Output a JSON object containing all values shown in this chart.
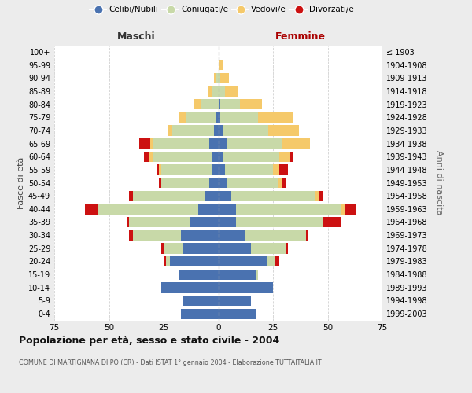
{
  "age_groups": [
    "0-4",
    "5-9",
    "10-14",
    "15-19",
    "20-24",
    "25-29",
    "30-34",
    "35-39",
    "40-44",
    "45-49",
    "50-54",
    "55-59",
    "60-64",
    "65-69",
    "70-74",
    "75-79",
    "80-84",
    "85-89",
    "90-94",
    "95-99",
    "100+"
  ],
  "birth_years": [
    "1999-2003",
    "1994-1998",
    "1989-1993",
    "1984-1988",
    "1979-1983",
    "1974-1978",
    "1969-1973",
    "1964-1968",
    "1959-1963",
    "1954-1958",
    "1949-1953",
    "1944-1948",
    "1939-1943",
    "1934-1938",
    "1929-1933",
    "1924-1928",
    "1919-1923",
    "1914-1918",
    "1909-1913",
    "1904-1908",
    "≤ 1903"
  ],
  "male_celibi": [
    17,
    16,
    26,
    18,
    22,
    16,
    17,
    13,
    9,
    6,
    4,
    3,
    3,
    4,
    2,
    1,
    0,
    0,
    0,
    0,
    0
  ],
  "male_coniugati": [
    0,
    0,
    0,
    0,
    2,
    9,
    22,
    28,
    46,
    33,
    22,
    23,
    27,
    26,
    19,
    14,
    8,
    3,
    1,
    0,
    0
  ],
  "male_vedovi": [
    0,
    0,
    0,
    0,
    0,
    0,
    0,
    0,
    0,
    0,
    0,
    1,
    2,
    1,
    2,
    3,
    3,
    2,
    1,
    0,
    0
  ],
  "male_divorziati": [
    0,
    0,
    0,
    0,
    1,
    1,
    2,
    1,
    6,
    2,
    1,
    1,
    2,
    5,
    0,
    0,
    0,
    0,
    0,
    0,
    0
  ],
  "female_nubili": [
    17,
    15,
    25,
    17,
    22,
    15,
    12,
    8,
    8,
    6,
    4,
    3,
    2,
    4,
    2,
    1,
    1,
    0,
    0,
    0,
    0
  ],
  "female_coniugate": [
    0,
    0,
    0,
    1,
    4,
    16,
    28,
    40,
    48,
    38,
    23,
    22,
    26,
    25,
    21,
    17,
    9,
    3,
    1,
    0,
    0
  ],
  "female_vedove": [
    0,
    0,
    0,
    0,
    0,
    0,
    0,
    0,
    2,
    2,
    2,
    3,
    5,
    13,
    14,
    16,
    10,
    6,
    4,
    2,
    0
  ],
  "female_divorziate": [
    0,
    0,
    0,
    0,
    2,
    1,
    1,
    8,
    5,
    2,
    2,
    4,
    1,
    0,
    0,
    0,
    0,
    0,
    0,
    0,
    0
  ],
  "color_celibi": "#4a72b0",
  "color_coniugati": "#c8d9a8",
  "color_vedovi": "#f5c96a",
  "color_divorziati": "#cc1111",
  "title": "Popolazione per età, sesso e stato civile - 2004",
  "subtitle": "COMUNE DI MARTIGNANA DI PO (CR) - Dati ISTAT 1° gennaio 2004 - Elaborazione TUTTAITALIA.IT",
  "label_maschi": "Maschi",
  "label_femmine": "Femmine",
  "label_fasce": "Fasce di età",
  "label_anni": "Anni di nascita",
  "legend_labels": [
    "Celibi/Nubili",
    "Coniugati/e",
    "Vedovi/e",
    "Divorzati/e"
  ],
  "xlim": 75,
  "bg_color": "#ececec",
  "plot_bg": "#ffffff"
}
